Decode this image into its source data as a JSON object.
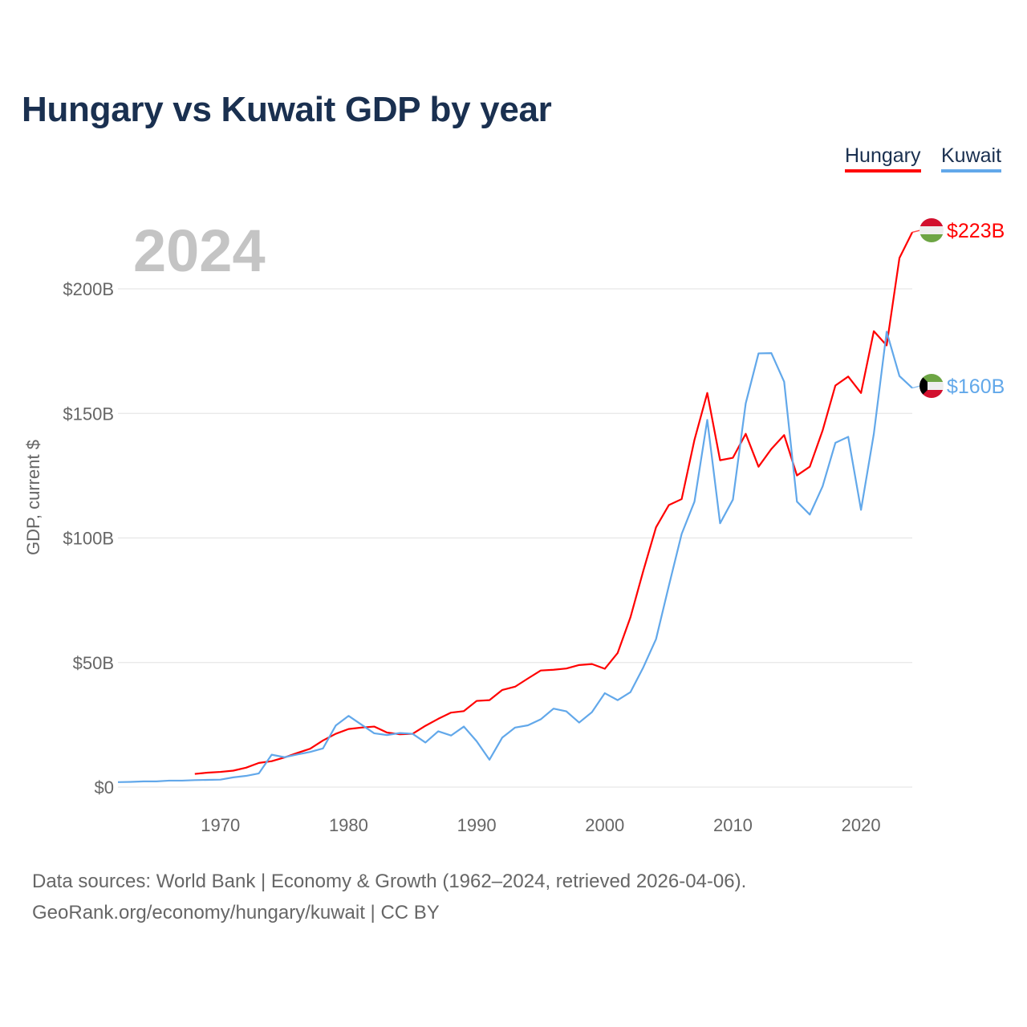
{
  "chart_data": {
    "type": "line",
    "title": "Hungary vs Kuwait GDP by year",
    "ylabel": "GDP, current $",
    "xlabel": "",
    "current_year": "2024",
    "xlim": [
      1962,
      2024
    ],
    "ylim": [
      0,
      200
    ],
    "yticks": [
      0,
      50,
      100,
      150,
      200
    ],
    "ytick_labels": [
      "$0",
      "$50B",
      "$100B",
      "$150B",
      "$200B"
    ],
    "xticks": [
      1970,
      1980,
      1990,
      2000,
      2010,
      2020
    ],
    "xtick_labels": [
      "1970",
      "1980",
      "1990",
      "2000",
      "2010",
      "2020"
    ],
    "grid": true,
    "legend_position": "top-right",
    "series": [
      {
        "name": "Hungary",
        "color": "#ff0000",
        "end_label": "$223B",
        "flag": "hungary-flag",
        "x_start": 1968,
        "values": [
          5.3,
          5.8,
          6.1,
          6.6,
          7.8,
          9.7,
          10.4,
          11.9,
          13.7,
          15.4,
          18.7,
          21.4,
          23.3,
          23.9,
          24.3,
          21.9,
          21.2,
          21.4,
          24.6,
          27.4,
          29.9,
          30.5,
          34.6,
          34.9,
          39.0,
          40.3,
          43.6,
          46.8,
          47.1,
          47.6,
          49.0,
          49.4,
          47.5,
          53.8,
          68.1,
          86.7,
          104.3,
          113.2,
          115.6,
          139.4,
          158.2,
          131.2,
          132.2,
          141.8,
          128.6,
          135.7,
          141.3,
          125.1,
          128.6,
          143.1,
          161.2,
          164.8,
          158.2,
          183.0,
          177.3,
          212.4,
          222.7
        ]
      },
      {
        "name": "Kuwait",
        "color": "#62a8ea",
        "end_label": "$160B",
        "flag": "kuwait-flag",
        "x_start": 1962,
        "values": [
          2.0,
          2.1,
          2.3,
          2.3,
          2.6,
          2.6,
          2.8,
          2.9,
          3.0,
          3.9,
          4.5,
          5.5,
          13.0,
          12.0,
          13.1,
          14.1,
          15.5,
          24.7,
          28.6,
          25.1,
          21.6,
          20.9,
          21.7,
          21.4,
          17.9,
          22.4,
          20.7,
          24.3,
          18.4,
          11.0,
          19.9,
          23.9,
          24.8,
          27.2,
          31.5,
          30.4,
          25.9,
          30.1,
          37.7,
          34.9,
          38.1,
          48.0,
          59.4,
          80.8,
          101.6,
          114.6,
          147.4,
          105.9,
          115.4,
          154.0,
          174.1,
          174.2,
          162.7,
          114.6,
          109.4,
          120.7,
          138.2,
          140.6,
          111.3,
          141.8,
          182.8,
          165.0,
          160.2
        ]
      }
    ]
  },
  "footer": {
    "line1": "Data sources: World Bank | Economy & Growth (1962–2024, retrieved 2026-04-06).",
    "line2": "GeoRank.org/economy/hungary/kuwait | CC BY"
  }
}
